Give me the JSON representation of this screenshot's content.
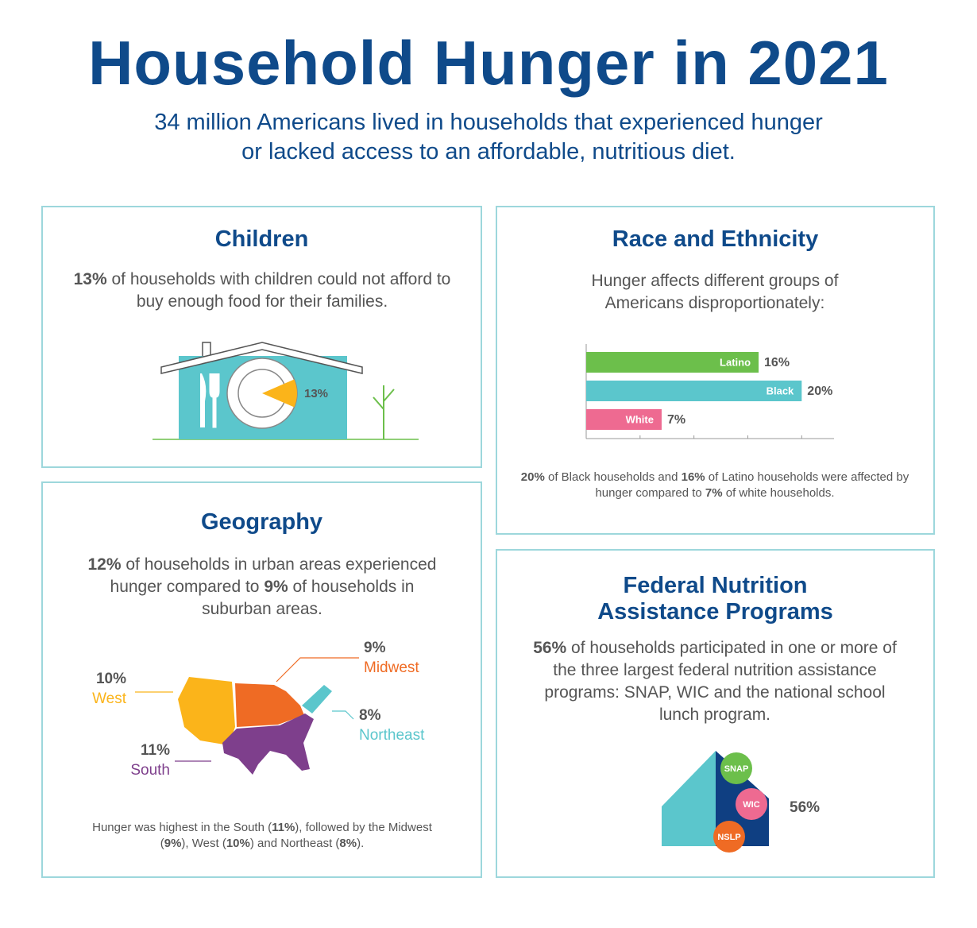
{
  "header": {
    "title": "Household Hunger in 2021",
    "subtitle": [
      "34 million Americans lived in households that experienced hunger",
      "or lacked access to an affordable, nutritious diet."
    ]
  },
  "children": {
    "title": "Children",
    "text": [
      {
        "bold": "13%"
      },
      {
        "text": " of households with children could not afford to buy enough food for their families."
      }
    ],
    "pie": {
      "value": 13,
      "label": "13%",
      "color": "#fbb41a"
    }
  },
  "race": {
    "title": "Race and Ethnicity",
    "text": [
      {
        "text": "Hunger affects different groups of Americans disproportionately:"
      }
    ],
    "chart_data": {
      "type": "bar",
      "orientation": "horizontal",
      "categories": [
        "Latino",
        "Black",
        "White"
      ],
      "values": [
        16,
        20,
        7
      ],
      "value_labels": [
        "16%",
        "20%",
        "7%"
      ],
      "colors": [
        "#6cbf4b",
        "#5bc6cc",
        "#ee6a91"
      ],
      "xlim": [
        0,
        23
      ],
      "xticks": [
        0,
        5,
        10,
        15,
        20
      ]
    },
    "note": [
      {
        "bold": "20%"
      },
      {
        "text": " of Black households and "
      },
      {
        "bold": "16%"
      },
      {
        "text": " of Latino households were affected by hunger compared to "
      },
      {
        "bold": "7%"
      },
      {
        "text": " of white households."
      }
    ]
  },
  "geography": {
    "title": "Geography",
    "text": [
      {
        "bold": "12%"
      },
      {
        "text": " of households in urban areas experienced hunger compared to "
      },
      {
        "bold": "9%"
      },
      {
        "text": " of households in suburban areas."
      }
    ],
    "regions": [
      {
        "value": "9%",
        "name": "Midwest",
        "color": "#ef6b24"
      },
      {
        "value": "10%",
        "name": "West",
        "color": "#fbb41a"
      },
      {
        "value": "8%",
        "name": "Northeast",
        "color": "#5bc6cc"
      },
      {
        "value": "11%",
        "name": "South",
        "color": "#7e3f8c"
      }
    ],
    "note": [
      {
        "text": "Hunger was highest in the South ("
      },
      {
        "bold": "11%"
      },
      {
        "text": "), followed by the Midwest ("
      },
      {
        "bold": "9%"
      },
      {
        "text": "), West  ("
      },
      {
        "bold": "10%"
      },
      {
        "text": ") and Northeast ("
      },
      {
        "bold": "8%"
      },
      {
        "text": ")."
      }
    ]
  },
  "federal": {
    "title": [
      "Federal Nutrition",
      "Assistance Programs"
    ],
    "text": [
      {
        "bold": "56%"
      },
      {
        "text": " of households participated in one or more of the three largest federal nutrition assistance programs: SNAP, WIC and the national school lunch program."
      }
    ],
    "programs": [
      "SNAP",
      "WIC",
      "NSLP"
    ],
    "stat": "56%"
  }
}
